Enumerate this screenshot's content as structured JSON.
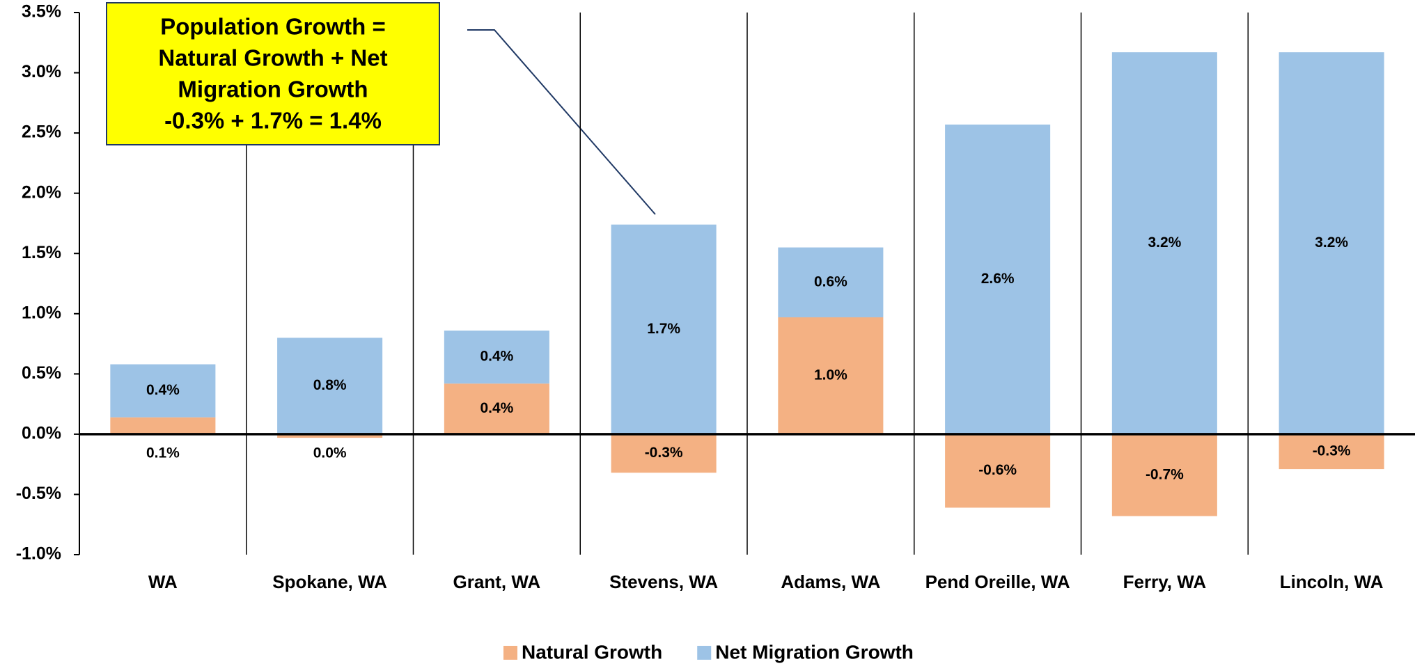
{
  "chart_data": {
    "type": "stacked_bar",
    "annotation": [
      "Population Growth =",
      "Natural Growth + Net",
      "Migration Growth",
      "-0.3% + 1.7% = 1.4%"
    ],
    "categories": [
      "WA",
      "Spokane, WA",
      "Grant, WA",
      "Stevens, WA",
      "Adams, WA",
      "Pend Oreille, WA",
      "Ferry, WA",
      "Lincoln, WA"
    ],
    "series": [
      {
        "name": "Natural Growth",
        "color": "#f4b183",
        "values": [
          0.14,
          -0.03,
          0.42,
          -0.32,
          0.97,
          -0.61,
          -0.68,
          -0.29
        ],
        "value_labels": [
          "0.1%",
          "0.0%",
          "0.4%",
          "-0.3%",
          "1.0%",
          "-0.6%",
          "-0.7%",
          "-0.3%"
        ]
      },
      {
        "name": "Net Migration Growth",
        "color": "#9dc3e6",
        "values": [
          0.44,
          0.8,
          0.44,
          1.74,
          0.58,
          2.57,
          3.17,
          3.17
        ],
        "value_labels": [
          "0.4%",
          "0.8%",
          "0.4%",
          "1.7%",
          "0.6%",
          "2.6%",
          "3.2%",
          "3.2%"
        ]
      }
    ],
    "ylim": [
      -1.0,
      3.5
    ],
    "yticks": [
      {
        "value": -1.0,
        "label": "-1.0%"
      },
      {
        "value": -0.5,
        "label": "-0.5%"
      },
      {
        "value": 0,
        "label": "0.0%"
      },
      {
        "value": 0.5,
        "label": "0.5%"
      },
      {
        "value": 1.0,
        "label": "1.0%"
      },
      {
        "value": 1.5,
        "label": "1.5%"
      },
      {
        "value": 2.0,
        "label": "2.0%"
      },
      {
        "value": 2.5,
        "label": "2.5%"
      },
      {
        "value": 3.0,
        "label": "3.0%"
      },
      {
        "value": 3.5,
        "label": "3.5%"
      }
    ],
    "legend": "bottom"
  }
}
